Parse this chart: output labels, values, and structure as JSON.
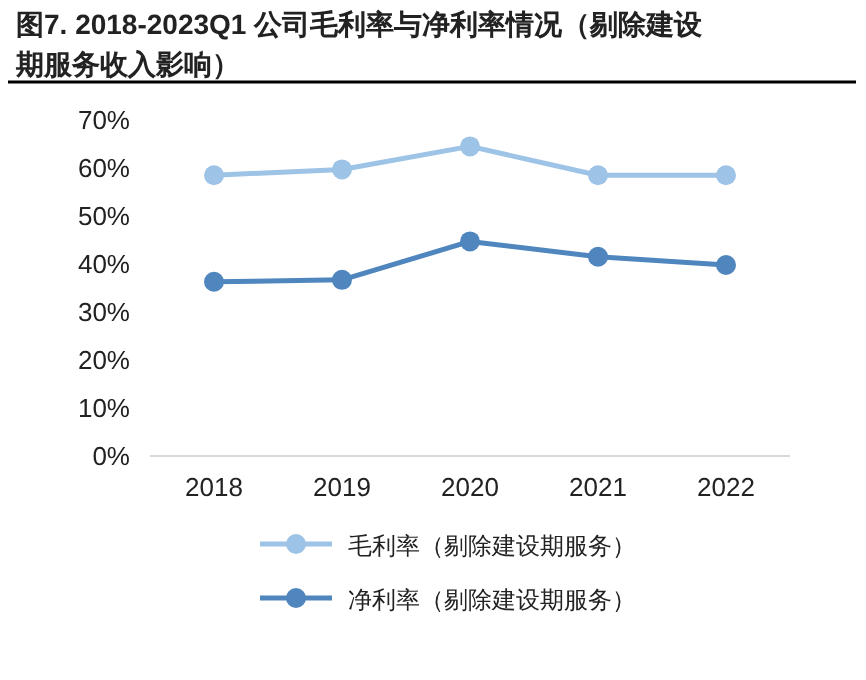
{
  "chart_data": {
    "type": "line",
    "title": "图7. 2018-2023Q1 公司毛利率与净利率情况（剔除建设期服务收入影响）",
    "categories": [
      "2018",
      "2019",
      "2020",
      "2021",
      "2022"
    ],
    "series": [
      {
        "name": "毛利率（剔除建设期服务）",
        "color": "#9dc3e6",
        "values": [
          58.5,
          59.7,
          64.5,
          58.5,
          58.5
        ]
      },
      {
        "name": "净利率（剔除建设期服务）",
        "color": "#4f86be",
        "values": [
          36.3,
          36.7,
          44.7,
          41.5,
          39.8
        ]
      }
    ],
    "ylim": [
      0,
      70
    ],
    "yticks": [
      {
        "value": 0,
        "label": "0%"
      },
      {
        "value": 10,
        "label": "10%"
      },
      {
        "value": 20,
        "label": "20%"
      },
      {
        "value": 30,
        "label": "30%"
      },
      {
        "value": 40,
        "label": "40%"
      },
      {
        "value": 50,
        "label": "50%"
      },
      {
        "value": 60,
        "label": "60%"
      },
      {
        "value": 70,
        "label": "70%"
      }
    ],
    "legend": "bottom",
    "marker": "circle",
    "line_style": "solid",
    "grid": false
  }
}
